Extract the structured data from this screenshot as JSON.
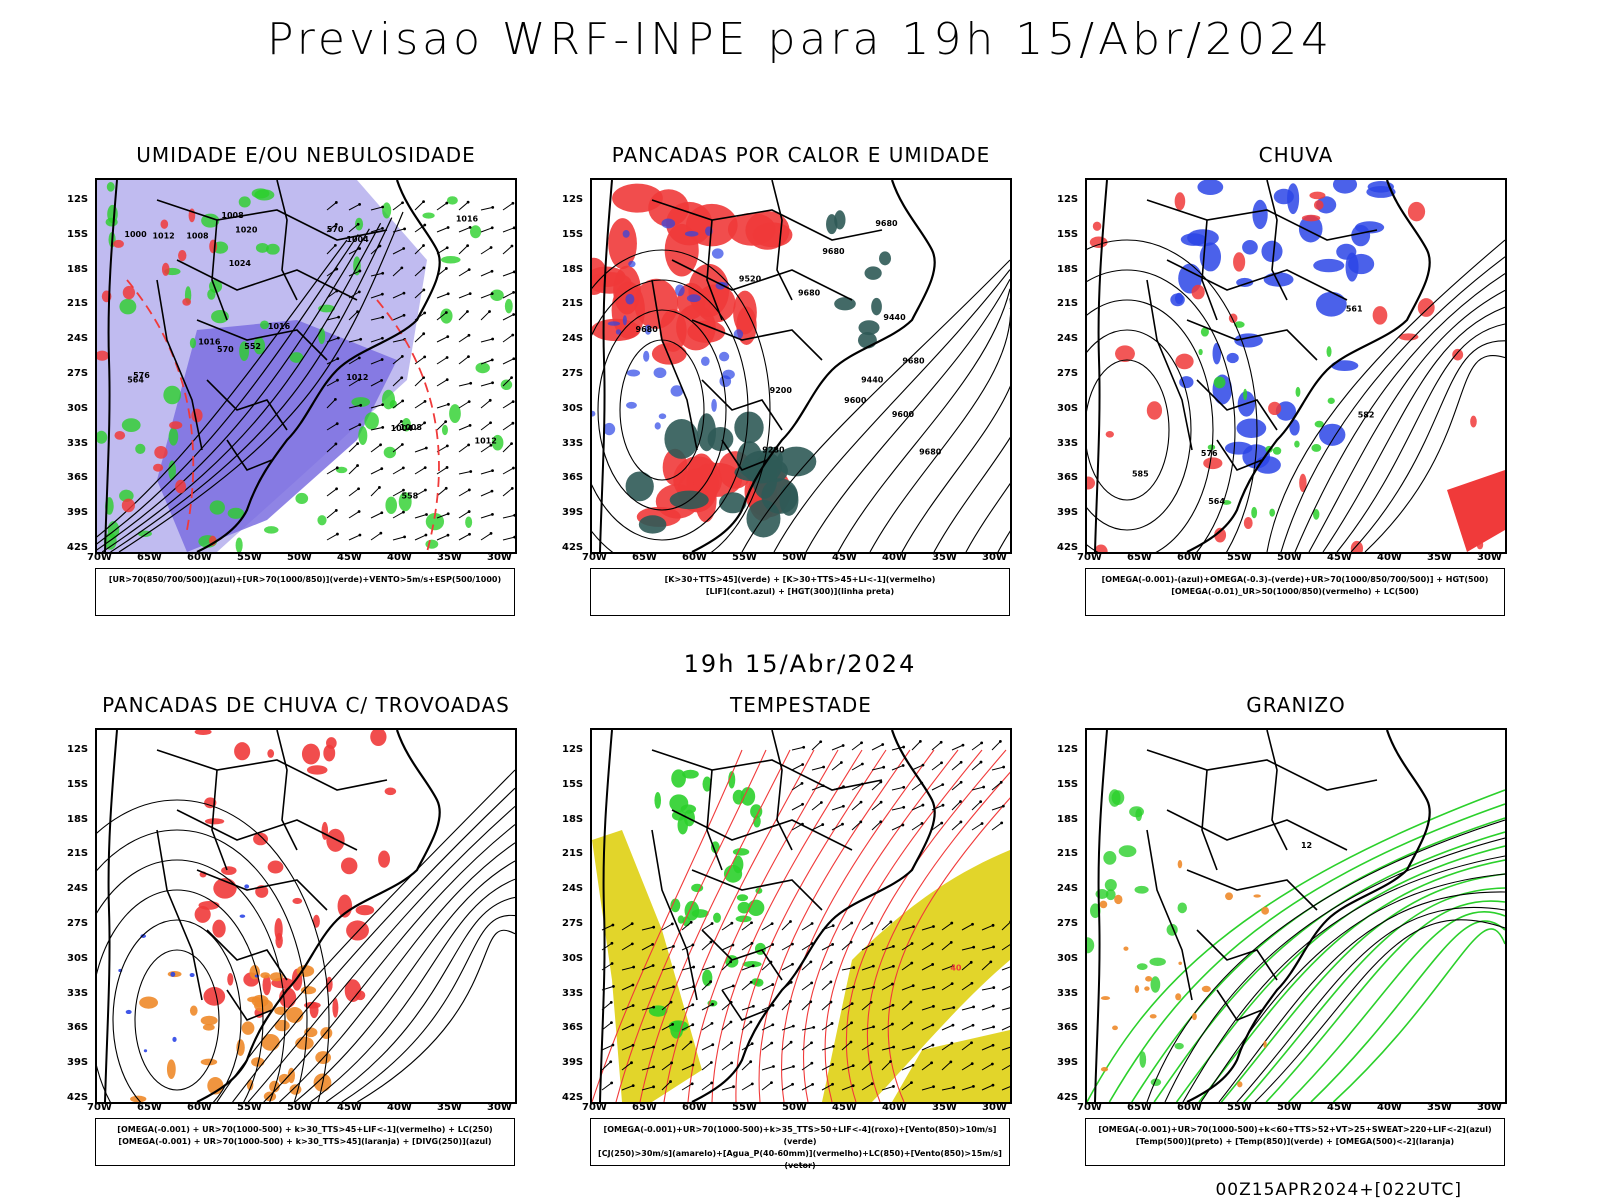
{
  "page": {
    "title": "Previsao WRF-INPE  para 19h 15/Abr/2024",
    "subtitle": "19h 15/Abr/2024",
    "footer": "00Z15APR2024+[022UTC]"
  },
  "axes": {
    "lat_labels": [
      "12S",
      "15S",
      "18S",
      "21S",
      "24S",
      "27S",
      "30S",
      "33S",
      "36S",
      "39S",
      "42S"
    ],
    "lon_labels": [
      "70W",
      "65W",
      "60W",
      "55W",
      "50W",
      "45W",
      "40W",
      "35W",
      "30W"
    ]
  },
  "panels": [
    {
      "title": "UMIDADE E/OU NEBULOSIDADE",
      "legend": [
        "[UR>70(850/700/500)](azul)+[UR>70(1000/850)](verde)+VENTO>5m/s+ESP(500/1000)"
      ],
      "labels": [
        "1004",
        "1008",
        "1012",
        "1012",
        "1016",
        "1016",
        "1020",
        "1024",
        "1008",
        "1012",
        "1016",
        "1008",
        "1004",
        "1000",
        "576",
        "570",
        "564",
        "558",
        "552",
        "570"
      ]
    },
    {
      "title": "PANCADAS POR CALOR E UMIDADE",
      "legend": [
        "[K>30+TTS>45](verde) + [K>30+TTS>45+LI<-1](vermelho)",
        "[LIF](cont.azul) + [HGT(300)](linha preta)"
      ],
      "labels": [
        "9680",
        "9600",
        "9520",
        "9440",
        "9200",
        "9280",
        "9440",
        "9600",
        "9680",
        "9680",
        "9680",
        "9680",
        "9680"
      ]
    },
    {
      "title": "CHUVA",
      "legend": [
        "[OMEGA(-0.001)-(azul)+OMEGA(-0.3)-(verde)+UR>70(1000/850/700/500)] + HGT(500)",
        "[OMEGA(-0.01)_UR>50(1000/850)(vermelho) + LC(500)"
      ],
      "labels": [
        "564",
        "561",
        "585",
        "582",
        "576"
      ]
    },
    {
      "title": "PANCADAS DE CHUVA C/ TROVOADAS",
      "legend": [
        "[OMEGA(-0.001) + UR>70(1000-500) + k>30_TTS>45+LIF<-1](vermelho) + LC(250)",
        "[OMEGA(-0.001) + UR>70(1000-500) + k>30_TTS>45](laranja) + [DIVG(250)](azul)"
      ],
      "labels": []
    },
    {
      "title": "TEMPESTADE",
      "legend": [
        "[OMEGA(-0.001)+UR>70(1000-500)+k>35_TTS>50+LIF<-4](roxo)+[Vento(850)>10m/s](verde)",
        "[CJ(250)>30m/s](amarelo)+[Agua_P(40-60mm)](vermelho)+LC(850)+[Vento(850)>15m/s](vetor)"
      ],
      "labels": [
        "40"
      ]
    },
    {
      "title": "GRANIZO",
      "legend": [
        "[OMEGA(-0.001)+UR>70(1000-500)+k<60+TTS>52+VT>25+SWEAT>220+LIF<-2](azul)",
        "[Temp(500)](preto) + [Temp(850)](verde) + [OMEGA(500)<-2](laranja)"
      ],
      "labels": [
        "12"
      ]
    }
  ],
  "colors": {
    "blue_humidity": "#7b6fe0",
    "light_blue": "#b9b4ee",
    "green": "#2bd02b",
    "red": "#f03a3a",
    "dark_teal": "#2f5a57",
    "yellow": "#e2d52a",
    "orange": "#ee8a2a",
    "blue": "#2b45e6"
  }
}
